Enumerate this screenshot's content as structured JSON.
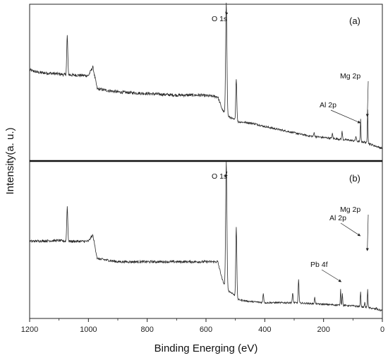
{
  "chart_data": {
    "type": "line",
    "xlabel": "Binding Energing (eV)",
    "ylabel": "Intensity(a. u.)",
    "xlim": [
      1200,
      0
    ],
    "x_reversed": true,
    "xticks": [
      1200,
      1000,
      800,
      600,
      400,
      200,
      0
    ],
    "grid": false,
    "panels": [
      {
        "label": "(a)",
        "baseline": [
          [
            1200,
            0.58
          ],
          [
            1170,
            0.565
          ],
          [
            1100,
            0.555
          ],
          [
            1078,
            0.55
          ],
          [
            1000,
            0.545
          ],
          [
            985,
            0.6
          ],
          [
            970,
            0.46
          ],
          [
            900,
            0.44
          ],
          [
            800,
            0.43
          ],
          [
            700,
            0.42
          ],
          [
            620,
            0.42
          ],
          [
            560,
            0.41
          ],
          [
            545,
            0.33
          ],
          [
            535,
            0.3
          ],
          [
            520,
            0.28
          ],
          [
            510,
            0.27
          ],
          [
            490,
            0.25
          ],
          [
            460,
            0.245
          ],
          [
            440,
            0.24
          ],
          [
            400,
            0.22
          ],
          [
            350,
            0.2
          ],
          [
            300,
            0.18
          ],
          [
            250,
            0.16
          ],
          [
            200,
            0.15
          ],
          [
            150,
            0.14
          ],
          [
            100,
            0.13
          ],
          [
            60,
            0.12
          ],
          [
            30,
            0.1
          ],
          [
            0,
            0.08
          ]
        ],
        "peaks": [
          {
            "x": 1072,
            "h": 0.25,
            "w": 2.5
          },
          {
            "x": 531,
            "h": 0.72,
            "w": 3
          },
          {
            "x": 497,
            "h": 0.27,
            "w": 2.5
          },
          {
            "x": 232,
            "h": 0.025,
            "w": 2
          },
          {
            "x": 170,
            "h": 0.03,
            "w": 2
          },
          {
            "x": 137,
            "h": 0.05,
            "w": 2
          },
          {
            "x": 90,
            "h": 0.03,
            "w": 2
          },
          {
            "x": 74,
            "h": 0.14,
            "w": 1.5
          },
          {
            "x": 50,
            "h": 0.22,
            "w": 1.5
          }
        ],
        "noise": 0.012,
        "annotations": [
          {
            "text": "O 1s",
            "x": 531
          },
          {
            "text": "Al 2p",
            "x": 74
          },
          {
            "text": "Mg 2p",
            "x": 50
          }
        ]
      },
      {
        "label": "(b)",
        "baseline": [
          [
            1200,
            0.49
          ],
          [
            1100,
            0.495
          ],
          [
            1078,
            0.49
          ],
          [
            1000,
            0.49
          ],
          [
            985,
            0.53
          ],
          [
            970,
            0.38
          ],
          [
            900,
            0.36
          ],
          [
            800,
            0.36
          ],
          [
            700,
            0.36
          ],
          [
            620,
            0.36
          ],
          [
            560,
            0.36
          ],
          [
            545,
            0.25
          ],
          [
            535,
            0.2
          ],
          [
            520,
            0.17
          ],
          [
            510,
            0.16
          ],
          [
            490,
            0.12
          ],
          [
            460,
            0.11
          ],
          [
            400,
            0.1
          ],
          [
            300,
            0.1
          ],
          [
            200,
            0.09
          ],
          [
            100,
            0.08
          ],
          [
            50,
            0.07
          ],
          [
            0,
            0.05
          ]
        ],
        "peaks": [
          {
            "x": 1072,
            "h": 0.22,
            "w": 2.5
          },
          {
            "x": 531,
            "h": 0.8,
            "w": 3
          },
          {
            "x": 497,
            "h": 0.45,
            "w": 2.5
          },
          {
            "x": 405,
            "h": 0.06,
            "w": 2
          },
          {
            "x": 305,
            "h": 0.06,
            "w": 2
          },
          {
            "x": 285,
            "h": 0.15,
            "w": 2
          },
          {
            "x": 230,
            "h": 0.04,
            "w": 2
          },
          {
            "x": 142,
            "h": 0.1,
            "w": 1.5
          },
          {
            "x": 136,
            "h": 0.08,
            "w": 1.5
          },
          {
            "x": 74,
            "h": 0.1,
            "w": 1.5
          },
          {
            "x": 60,
            "h": 0.03,
            "w": 1.5
          },
          {
            "x": 50,
            "h": 0.12,
            "w": 1.5
          },
          {
            "x": 20,
            "h": 0.01,
            "w": 1.5
          }
        ],
        "noise": 0.01,
        "annotations": [
          {
            "text": "O 1s",
            "x": 531
          },
          {
            "text": "Pb 4f",
            "x": 139
          },
          {
            "text": "Al 2p",
            "x": 74
          },
          {
            "text": "Mg 2p",
            "x": 50
          }
        ]
      }
    ]
  }
}
